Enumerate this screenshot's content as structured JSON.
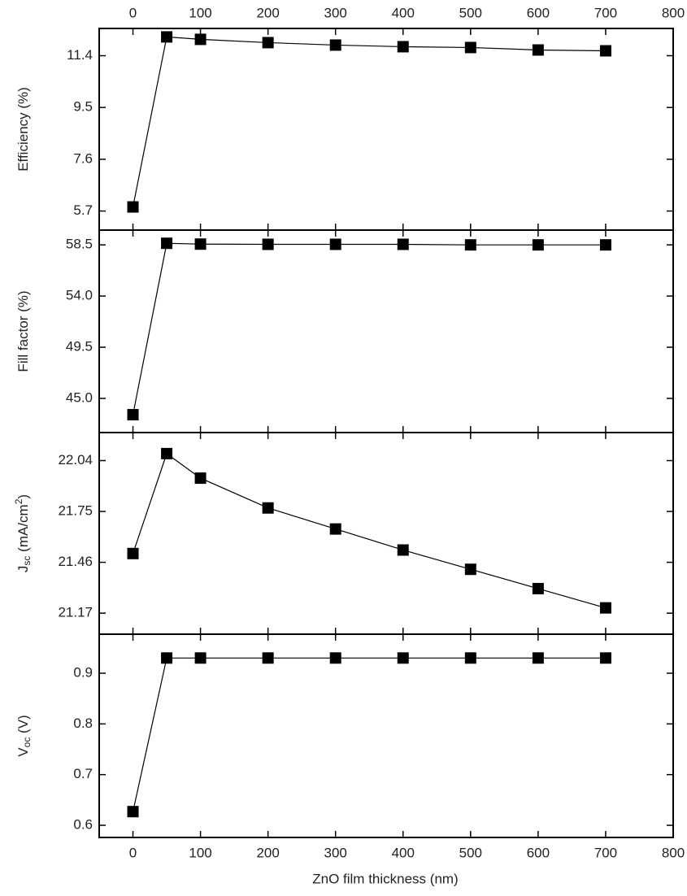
{
  "shared_x": {
    "x": [
      0,
      50,
      100,
      200,
      300,
      400,
      500,
      600,
      700
    ],
    "xlim": [
      -50,
      800
    ],
    "xticks": [
      0,
      100,
      200,
      300,
      400,
      500,
      600,
      700,
      800
    ],
    "xlabel": "ZnO film thickness (nm)"
  },
  "chart_data": [
    {
      "type": "line",
      "ylabel": [
        {
          "text": "Efficiency (%)"
        }
      ],
      "ylim": [
        5.0,
        12.4
      ],
      "yticks": [
        {
          "value": 5.7,
          "label": "5.7"
        },
        {
          "value": 7.6,
          "label": "7.6"
        },
        {
          "value": 9.5,
          "label": "9.5"
        },
        {
          "value": 11.4,
          "label": "11.4"
        }
      ],
      "series": [
        {
          "color": "#000000",
          "marker": "square",
          "values": [
            5.85,
            12.09,
            12.0,
            11.88,
            11.79,
            11.73,
            11.7,
            11.61,
            11.58
          ]
        }
      ]
    },
    {
      "type": "line",
      "ylabel": [
        {
          "text": "Fill factor (%)"
        }
      ],
      "ylim": [
        42.0,
        59.8
      ],
      "yticks": [
        {
          "value": 45,
          "label": "45.0"
        },
        {
          "value": 49.5,
          "label": "49.5"
        },
        {
          "value": 54,
          "label": "54.0"
        },
        {
          "value": 58.5,
          "label": "58.5"
        }
      ],
      "series": [
        {
          "color": "#000000",
          "marker": "square",
          "values": [
            43.57,
            58.64,
            58.57,
            58.55,
            58.55,
            58.55,
            58.5,
            58.5,
            58.5
          ]
        }
      ]
    },
    {
      "type": "line",
      "ylabel": [
        {
          "text": "J"
        },
        {
          "text": "sc",
          "style": "sub"
        },
        {
          "text": " (mA/cm"
        },
        {
          "text": "2",
          "style": "sup"
        },
        {
          "text": ")"
        }
      ],
      "ylim": [
        21.05,
        22.2
      ],
      "yticks": [
        21.17,
        21.46,
        21.75,
        22.04
      ],
      "series": [
        {
          "color": "#000000",
          "marker": "square",
          "values": [
            21.51,
            22.08,
            21.94,
            21.77,
            21.65,
            21.53,
            21.42,
            21.31,
            21.2
          ]
        }
      ]
    },
    {
      "type": "line",
      "ylabel": [
        {
          "text": "V"
        },
        {
          "text": "oc",
          "style": "sub"
        },
        {
          "text": " (V)"
        }
      ],
      "ylim": [
        0.576,
        0.977
      ],
      "yticks": [
        0.6,
        0.7,
        0.8,
        0.9
      ],
      "series": [
        {
          "color": "#000000",
          "marker": "square",
          "values": [
            0.627,
            0.93,
            0.93,
            0.93,
            0.93,
            0.93,
            0.93,
            0.93,
            0.93
          ]
        }
      ]
    }
  ]
}
